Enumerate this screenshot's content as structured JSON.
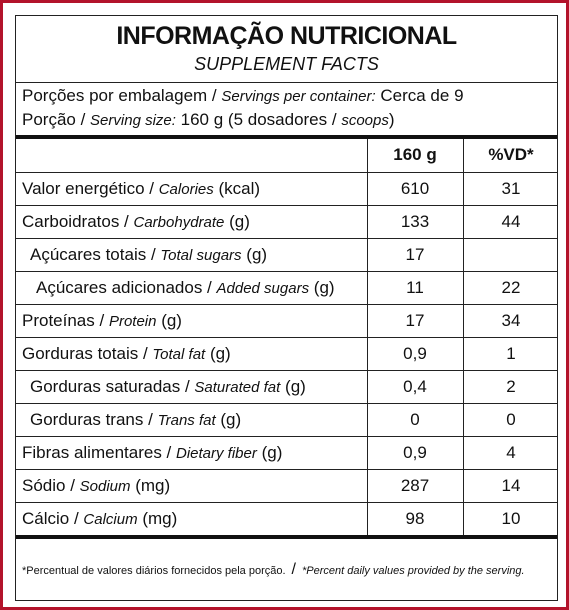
{
  "title": "INFORMAÇÃO NUTRICIONAL",
  "subtitle": "SUPPLEMENT FACTS",
  "servings_per_container": {
    "pt": "Porções por embalagem / ",
    "en": "Servings per container:",
    "value": " Cerca de 9"
  },
  "serving_size": {
    "pt": "Porção / ",
    "en": "Serving size:",
    "value_pt": " 160 g (5 dosadores / ",
    "value_en": "scoops",
    "close": ")"
  },
  "header": {
    "amount": "160 g",
    "dv": "%VD*"
  },
  "rows": [
    {
      "pt": "Valor energético / ",
      "en": "Calories",
      "unit": " (kcal)",
      "value": "610",
      "dv": "31"
    },
    {
      "pt": "Carboidratos / ",
      "en": "Carbohydrate",
      "unit": " (g)",
      "value": "133",
      "dv": "44"
    },
    {
      "pt": "Açúcares totais / ",
      "en": "Total sugars",
      "unit": " (g)",
      "value": "17",
      "dv": ""
    },
    {
      "pt": "Açúcares adicionados / ",
      "en": "Added sugars",
      "unit": " (g)",
      "value": "11",
      "dv": "22"
    },
    {
      "pt": "Proteínas / ",
      "en": "Protein",
      "unit": " (g)",
      "value": "17",
      "dv": "34"
    },
    {
      "pt": "Gorduras totais / ",
      "en": "Total fat",
      "unit": " (g)",
      "value": "0,9",
      "dv": "1"
    },
    {
      "pt": "Gorduras saturadas / ",
      "en": "Saturated fat",
      "unit": " (g)",
      "value": "0,4",
      "dv": "2"
    },
    {
      "pt": "Gorduras trans / ",
      "en": "Trans fat",
      "unit": " (g)",
      "value": "0",
      "dv": "0"
    },
    {
      "pt": "Fibras alimentares / ",
      "en": "Dietary fiber",
      "unit": " (g)",
      "value": "0,9",
      "dv": "4"
    },
    {
      "pt": "Sódio / ",
      "en": "Sodium",
      "unit": " (mg)",
      "value": "287",
      "dv": "14"
    },
    {
      "pt": "Cálcio / ",
      "en": "Calcium",
      "unit": " (mg)",
      "value": "98",
      "dv": "10"
    }
  ],
  "footnote": {
    "pt": "*Percentual de valores diários fornecidos pela porção.",
    "separator": "/",
    "en": "*Percent daily values provided by the serving."
  },
  "colors": {
    "border": "#b3132b",
    "text": "#111111"
  }
}
